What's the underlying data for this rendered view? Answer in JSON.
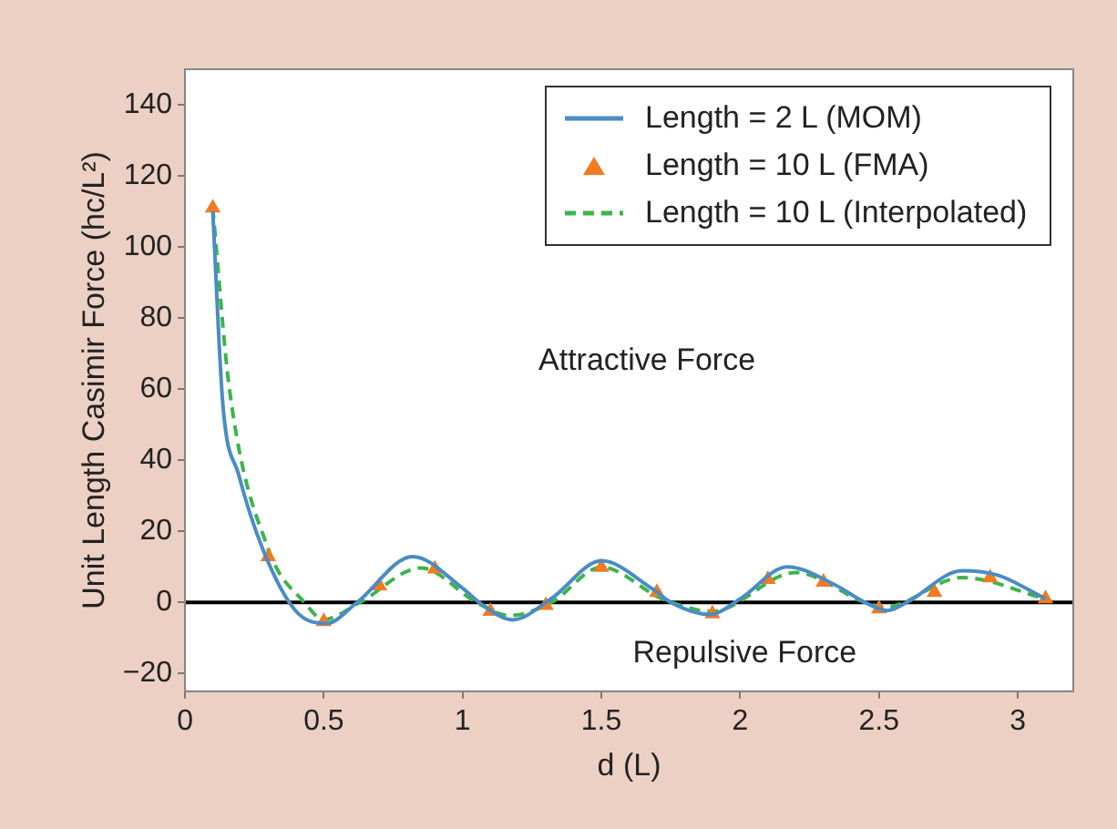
{
  "chart_data": {
    "type": "line",
    "xlabel": "d (L)",
    "ylabel": "Unit Length Casimir Force (hc/L²)",
    "xlim": [
      0,
      3.2
    ],
    "xticks": [
      0,
      0.5,
      1,
      1.5,
      2,
      2.5,
      3
    ],
    "ylim": [
      -25,
      150
    ],
    "yticks": [
      -20,
      0,
      20,
      40,
      60,
      80,
      100,
      120,
      140
    ],
    "legend": "top right",
    "annotations": [
      "Attractive Force",
      "Repulsive Force"
    ],
    "ref_lines": [
      {
        "axis": "y",
        "value": 0,
        "color": "#000000"
      }
    ],
    "series": [
      {
        "name": "Length = 2 L (MOM)",
        "color": "#4a8cc4",
        "marker": "none",
        "line_style": "solid",
        "x": [
          0.1,
          0.136,
          0.193,
          0.28,
          0.4,
          0.51,
          0.62,
          0.82,
          1.0,
          1.06,
          1.18,
          1.32,
          1.5,
          1.68,
          1.75,
          1.89,
          2.0,
          2.17,
          2.34,
          2.45,
          2.53,
          2.6,
          2.8,
          2.93,
          3.1
        ],
        "values": [
          110,
          56,
          36,
          15,
          -2.5,
          -5.9,
          0,
          12.9,
          4,
          0,
          -4.9,
          1.1,
          11.7,
          4,
          0,
          -3.4,
          1,
          10,
          5,
          0,
          -2.3,
          0,
          8.9,
          7.6,
          1
        ]
      },
      {
        "name": "Length = 10 L (FMA)",
        "type": "scatter",
        "color": "#f07b22",
        "marker": "triangle",
        "x": [
          0.1,
          0.3,
          0.5,
          0.7,
          0.9,
          1.1,
          1.3,
          1.5,
          1.7,
          1.9,
          2.1,
          2.3,
          2.5,
          2.7,
          2.9,
          3.1
        ],
        "values": [
          111,
          12.9,
          -5.4,
          4.7,
          9.4,
          -2.5,
          -0.8,
          9.9,
          2.8,
          -3.2,
          6.5,
          5.7,
          -1.8,
          2.8,
          6.9,
          1
        ]
      },
      {
        "name": "Length = 10 L (Interpolated)",
        "color": "#3bb54a",
        "marker": "none",
        "line_style": "dashed",
        "x": [
          0.1,
          0.16,
          0.3,
          0.43,
          0.5,
          0.63,
          0.85,
          1.05,
          1.17,
          1.32,
          1.5,
          1.72,
          1.9,
          2.2,
          2.45,
          2.52,
          2.8,
          3.1
        ],
        "values": [
          111,
          60,
          15,
          0,
          -4.8,
          0,
          9.7,
          0,
          -3.7,
          0,
          9.9,
          1,
          -2.5,
          8.4,
          0,
          -1.3,
          7,
          1
        ]
      }
    ]
  }
}
